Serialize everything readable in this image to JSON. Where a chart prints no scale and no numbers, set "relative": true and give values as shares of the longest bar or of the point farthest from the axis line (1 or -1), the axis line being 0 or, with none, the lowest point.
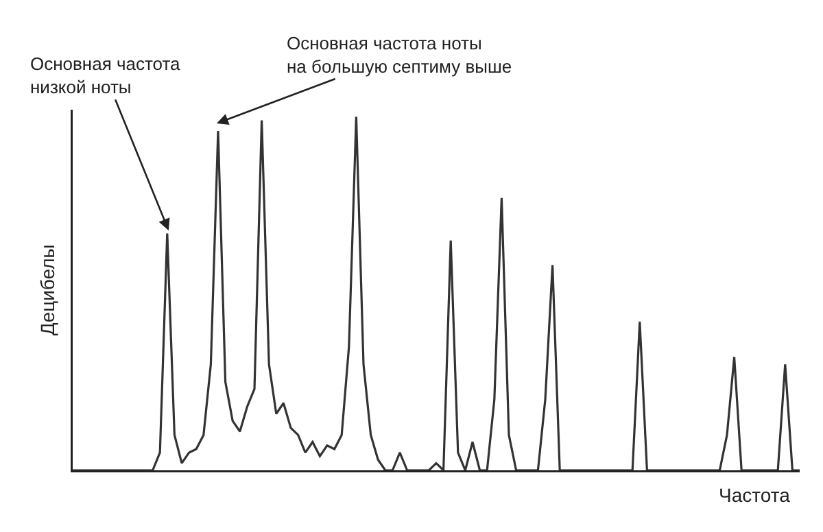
{
  "chart_data": {
    "type": "line",
    "relative": true,
    "xlabel": "Частота",
    "ylabel": "Децибелы",
    "marker": "none",
    "line_style": "solid",
    "annotations": [
      "Основная частота\nнизкой ноты",
      "Основная частота ноты\nна большую септиму выше"
    ],
    "categories": [
      null,
      null,
      null,
      null,
      null,
      null,
      null,
      null,
      null,
      null,
      null,
      null,
      null,
      null,
      null,
      null,
      null,
      null,
      null,
      null,
      null,
      null,
      null,
      null,
      null,
      null,
      null,
      null,
      null,
      null,
      null,
      null,
      null,
      null,
      null,
      null,
      null,
      null,
      null,
      null,
      null,
      null,
      null,
      null,
      null,
      null,
      null,
      null,
      null,
      null,
      null,
      null,
      null,
      null,
      null,
      null,
      null,
      null,
      null,
      null,
      null,
      null,
      null,
      null,
      null,
      null,
      null,
      null,
      null,
      null,
      null,
      null,
      null,
      null,
      null,
      null,
      null,
      null,
      null,
      null,
      null,
      null,
      null,
      null,
      null,
      null,
      null,
      null,
      null,
      null,
      null,
      null,
      null,
      null,
      null,
      null,
      null,
      null,
      null,
      null,
      null
    ],
    "series": [
      {
        "color": "#333333",
        "values": [
          0,
          0,
          0,
          0,
          0,
          0,
          0,
          0,
          0,
          0,
          0,
          0,
          0.05,
          0.67,
          0.1,
          0.02,
          0.05,
          0.06,
          0.1,
          0.3,
          0.96,
          0.25,
          0.14,
          0.11,
          0.18,
          0.23,
          0.99,
          0.3,
          0.16,
          0.19,
          0.12,
          0.1,
          0.05,
          0.08,
          0.04,
          0.07,
          0.06,
          0.1,
          0.35,
          1.0,
          0.3,
          0.1,
          0.03,
          0,
          0,
          0.05,
          0,
          0,
          0,
          0,
          0.02,
          0,
          0.65,
          0.05,
          0,
          0.08,
          0,
          0,
          0.2,
          0.77,
          0.1,
          0,
          0,
          0,
          0,
          0.2,
          0.58,
          0,
          0,
          0,
          0,
          0,
          0,
          0,
          0,
          0,
          0,
          0,
          0.42,
          0,
          0,
          0,
          0,
          0,
          0,
          0,
          0,
          0,
          0,
          0,
          0.1,
          0.32,
          0,
          0,
          0,
          0,
          0,
          0,
          0.3,
          0,
          0
        ]
      }
    ]
  }
}
